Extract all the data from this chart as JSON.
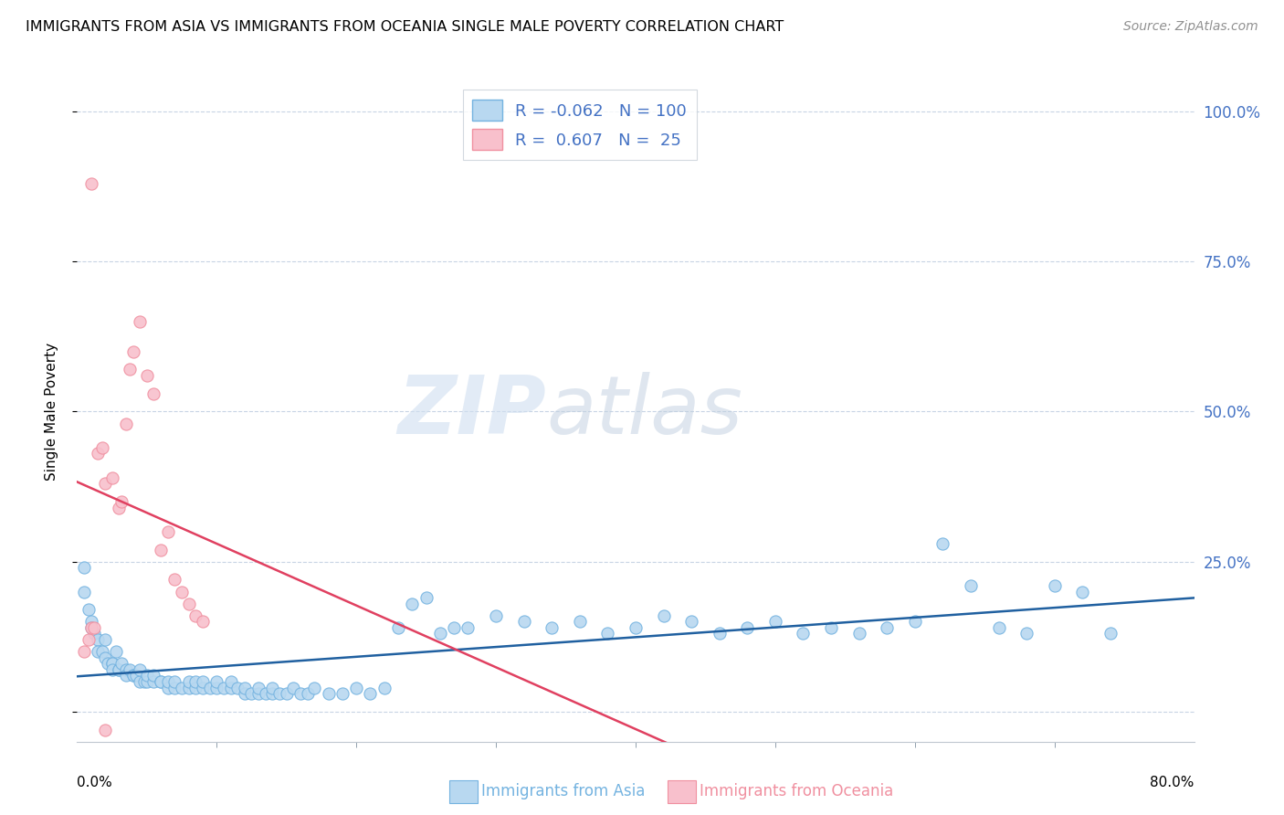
{
  "title": "IMMIGRANTS FROM ASIA VS IMMIGRANTS FROM OCEANIA SINGLE MALE POVERTY CORRELATION CHART",
  "source": "Source: ZipAtlas.com",
  "ylabel": "Single Male Poverty",
  "xlim": [
    0.0,
    0.8
  ],
  "ylim": [
    -0.05,
    1.05
  ],
  "yticks": [
    0.0,
    0.25,
    0.5,
    0.75,
    1.0
  ],
  "ytick_labels": [
    "",
    "25.0%",
    "50.0%",
    "75.0%",
    "100.0%"
  ],
  "watermark_zip": "ZIP",
  "watermark_atlas": "atlas",
  "asia_color_edge": "#74b3e0",
  "asia_color_face": "#b8d8f0",
  "oceania_color_edge": "#f090a0",
  "oceania_color_face": "#f8c0cc",
  "asia_line_color": "#2060a0",
  "oceania_line_color": "#e04060",
  "grid_color": "#c8d4e4",
  "tick_color": "#8090a0",
  "label_color": "#4472c4",
  "background_color": "#ffffff",
  "asia_x": [
    0.005,
    0.008,
    0.01,
    0.01,
    0.012,
    0.015,
    0.015,
    0.018,
    0.02,
    0.02,
    0.022,
    0.025,
    0.025,
    0.025,
    0.028,
    0.03,
    0.03,
    0.032,
    0.035,
    0.035,
    0.038,
    0.04,
    0.04,
    0.042,
    0.045,
    0.045,
    0.048,
    0.05,
    0.05,
    0.055,
    0.055,
    0.06,
    0.06,
    0.065,
    0.065,
    0.07,
    0.07,
    0.075,
    0.08,
    0.08,
    0.085,
    0.085,
    0.09,
    0.09,
    0.095,
    0.1,
    0.1,
    0.105,
    0.11,
    0.11,
    0.115,
    0.12,
    0.12,
    0.125,
    0.13,
    0.13,
    0.135,
    0.14,
    0.14,
    0.145,
    0.15,
    0.155,
    0.16,
    0.165,
    0.17,
    0.18,
    0.19,
    0.2,
    0.21,
    0.22,
    0.23,
    0.24,
    0.25,
    0.26,
    0.27,
    0.28,
    0.3,
    0.32,
    0.34,
    0.36,
    0.38,
    0.4,
    0.42,
    0.44,
    0.46,
    0.48,
    0.5,
    0.52,
    0.54,
    0.56,
    0.58,
    0.6,
    0.62,
    0.64,
    0.66,
    0.68,
    0.7,
    0.72,
    0.74,
    0.005
  ],
  "asia_y": [
    0.2,
    0.17,
    0.15,
    0.14,
    0.13,
    0.12,
    0.1,
    0.1,
    0.09,
    0.12,
    0.08,
    0.08,
    0.08,
    0.07,
    0.1,
    0.07,
    0.07,
    0.08,
    0.07,
    0.06,
    0.07,
    0.06,
    0.06,
    0.06,
    0.05,
    0.07,
    0.05,
    0.05,
    0.06,
    0.05,
    0.06,
    0.05,
    0.05,
    0.04,
    0.05,
    0.04,
    0.05,
    0.04,
    0.04,
    0.05,
    0.04,
    0.05,
    0.04,
    0.05,
    0.04,
    0.04,
    0.05,
    0.04,
    0.04,
    0.05,
    0.04,
    0.03,
    0.04,
    0.03,
    0.03,
    0.04,
    0.03,
    0.03,
    0.04,
    0.03,
    0.03,
    0.04,
    0.03,
    0.03,
    0.04,
    0.03,
    0.03,
    0.04,
    0.03,
    0.04,
    0.14,
    0.18,
    0.19,
    0.13,
    0.14,
    0.14,
    0.16,
    0.15,
    0.14,
    0.15,
    0.13,
    0.14,
    0.16,
    0.15,
    0.13,
    0.14,
    0.15,
    0.13,
    0.14,
    0.13,
    0.14,
    0.15,
    0.28,
    0.21,
    0.14,
    0.13,
    0.21,
    0.2,
    0.13,
    0.24
  ],
  "oceania_x": [
    0.005,
    0.008,
    0.01,
    0.012,
    0.015,
    0.018,
    0.02,
    0.025,
    0.03,
    0.032,
    0.035,
    0.038,
    0.04,
    0.045,
    0.05,
    0.055,
    0.06,
    0.065,
    0.07,
    0.075,
    0.08,
    0.085,
    0.09,
    0.01,
    0.02
  ],
  "oceania_y": [
    0.1,
    0.12,
    0.14,
    0.14,
    0.43,
    0.44,
    0.38,
    0.39,
    0.34,
    0.35,
    0.48,
    0.57,
    0.6,
    0.65,
    0.56,
    0.53,
    0.27,
    0.3,
    0.22,
    0.2,
    0.18,
    0.16,
    0.15,
    0.88,
    -0.03
  ]
}
